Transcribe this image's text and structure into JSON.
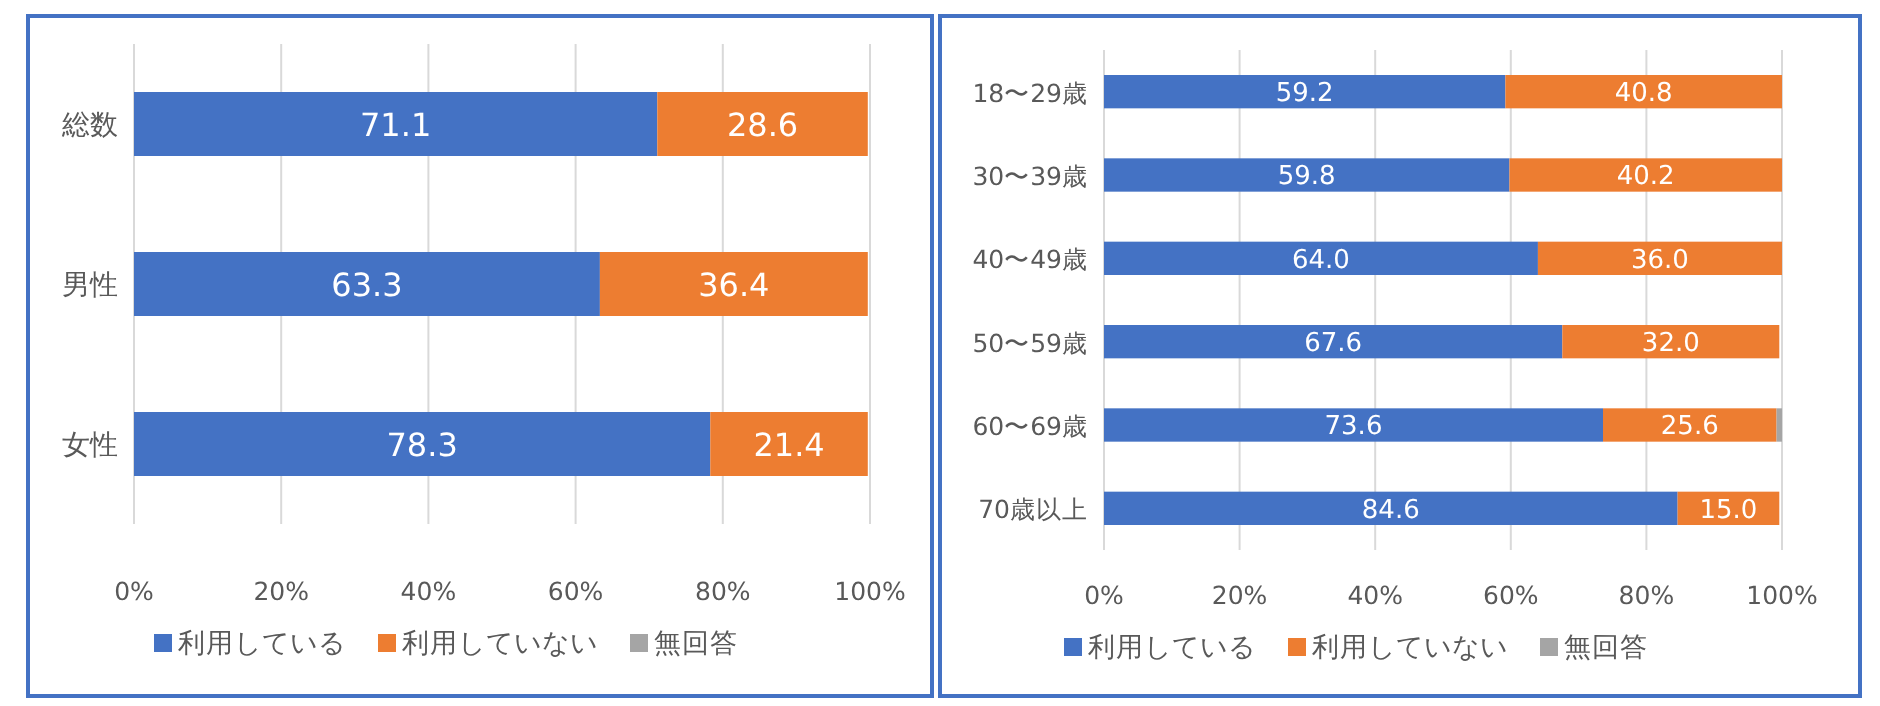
{
  "chart_data": [
    {
      "type": "bar",
      "orientation": "horizontal",
      "stacked": true,
      "grid": "x",
      "legend": "bottom",
      "categories": [
        "総数",
        "男性",
        "女性"
      ],
      "xlim": [
        0,
        100
      ],
      "xticks": [
        {
          "value": 0,
          "label": "0%"
        },
        {
          "value": 20,
          "label": "20%"
        },
        {
          "value": 40,
          "label": "40%"
        },
        {
          "value": 60,
          "label": "60%"
        },
        {
          "value": 80,
          "label": "80%"
        },
        {
          "value": 100,
          "label": "100%"
        }
      ],
      "series": [
        {
          "name": "利用している",
          "color": "#4472c4",
          "values": [
            71.1,
            63.3,
            78.3
          ],
          "value_labels": [
            "71.1",
            "63.3",
            "78.3"
          ]
        },
        {
          "name": "利用していない",
          "color": "#ed7d31",
          "values": [
            28.6,
            36.4,
            21.4
          ],
          "value_labels": [
            "28.6",
            "36.4",
            "21.4"
          ]
        },
        {
          "name": "無回答",
          "color": "#a5a5a5",
          "values": [
            null,
            null,
            null
          ]
        }
      ]
    },
    {
      "type": "bar",
      "orientation": "horizontal",
      "stacked": true,
      "grid": "x",
      "legend": "bottom",
      "categories": [
        "18〜29歳",
        "30〜39歳",
        "40〜49歳",
        "50〜59歳",
        "60〜69歳",
        "70歳以上"
      ],
      "xlim": [
        0,
        100
      ],
      "xticks": [
        {
          "value": 0,
          "label": "0%"
        },
        {
          "value": 20,
          "label": "20%"
        },
        {
          "value": 40,
          "label": "40%"
        },
        {
          "value": 60,
          "label": "60%"
        },
        {
          "value": 80,
          "label": "80%"
        },
        {
          "value": 100,
          "label": "100%"
        }
      ],
      "series": [
        {
          "name": "利用している",
          "color": "#4472c4",
          "values": [
            59.2,
            59.8,
            64.0,
            67.6,
            73.6,
            84.6
          ],
          "value_labels": [
            "59.2",
            "59.8",
            "64.0",
            "67.6",
            "73.6",
            "84.6"
          ]
        },
        {
          "name": "利用していない",
          "color": "#ed7d31",
          "values": [
            40.8,
            40.2,
            36.0,
            32.0,
            25.6,
            15.0
          ],
          "value_labels": [
            "40.8",
            "40.2",
            "36.0",
            "32.0",
            "25.6",
            "15.0"
          ]
        },
        {
          "name": "無回答",
          "color": "#a5a5a5",
          "values": [
            0,
            0,
            0,
            null,
            0.8,
            null
          ]
        }
      ]
    }
  ]
}
